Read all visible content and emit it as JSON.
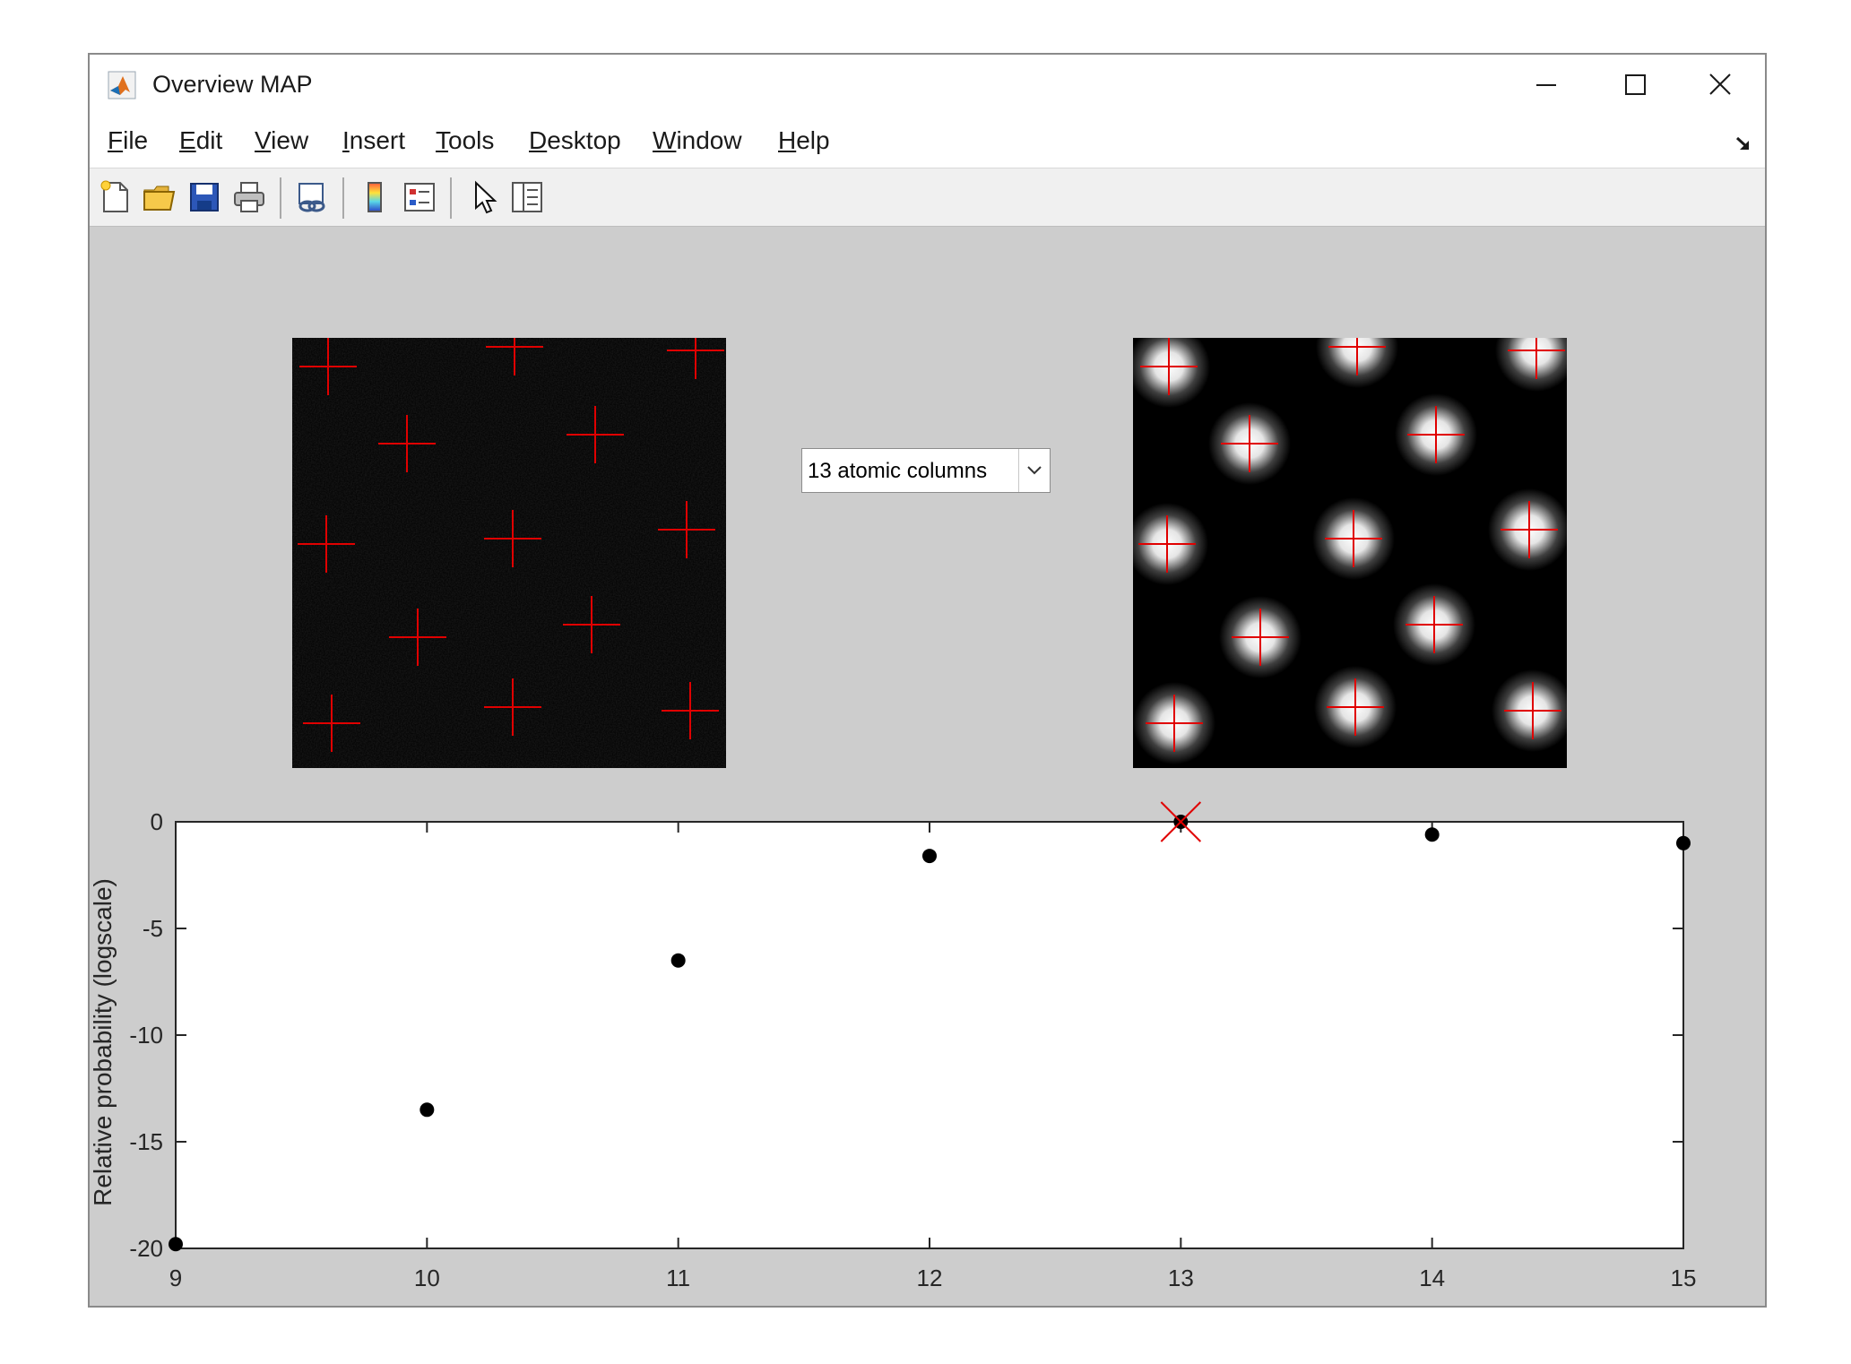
{
  "window": {
    "title": "Overview MAP",
    "controls": {
      "minimize": "minimize-icon",
      "maximize": "maximize-icon",
      "close": "close-icon"
    }
  },
  "menu": {
    "items": [
      {
        "key": "F",
        "rest": "ile"
      },
      {
        "key": "E",
        "rest": "dit"
      },
      {
        "key": "V",
        "rest": "iew"
      },
      {
        "key": "I",
        "rest": "nsert"
      },
      {
        "key": "T",
        "rest": "ools"
      },
      {
        "key": "D",
        "rest": "esktop"
      },
      {
        "key": "W",
        "rest": "indow"
      },
      {
        "key": "H",
        "rest": "elp"
      }
    ]
  },
  "toolbar": {
    "icons": [
      "new-figure-icon",
      "open-file-icon",
      "save-icon",
      "print-icon",
      "link-plot-icon",
      "colorbar-icon",
      "legend-icon",
      "pointer-icon",
      "property-inspector-icon"
    ]
  },
  "dropdown": {
    "selected": "13 atomic columns"
  },
  "colors": {
    "marker": "#e00000",
    "point": "#000000",
    "figure_bg": "#cdcdcd"
  },
  "chart_data": {
    "type": "scatter",
    "x": [
      9,
      10,
      11,
      12,
      13,
      14,
      15
    ],
    "y": [
      -19.8,
      -13.5,
      -6.5,
      -1.6,
      0,
      -0.6,
      -1.0
    ],
    "highlight": {
      "x": 13,
      "y": 0
    },
    "xlim": [
      9,
      15
    ],
    "ylim": [
      -20,
      0
    ],
    "xticks": [
      9,
      10,
      11,
      12,
      13,
      14,
      15
    ],
    "yticks": [
      0,
      -5,
      -10,
      -15,
      -20
    ],
    "xlabel": "",
    "ylabel": "Relative probability (logscale)",
    "grid": false
  }
}
